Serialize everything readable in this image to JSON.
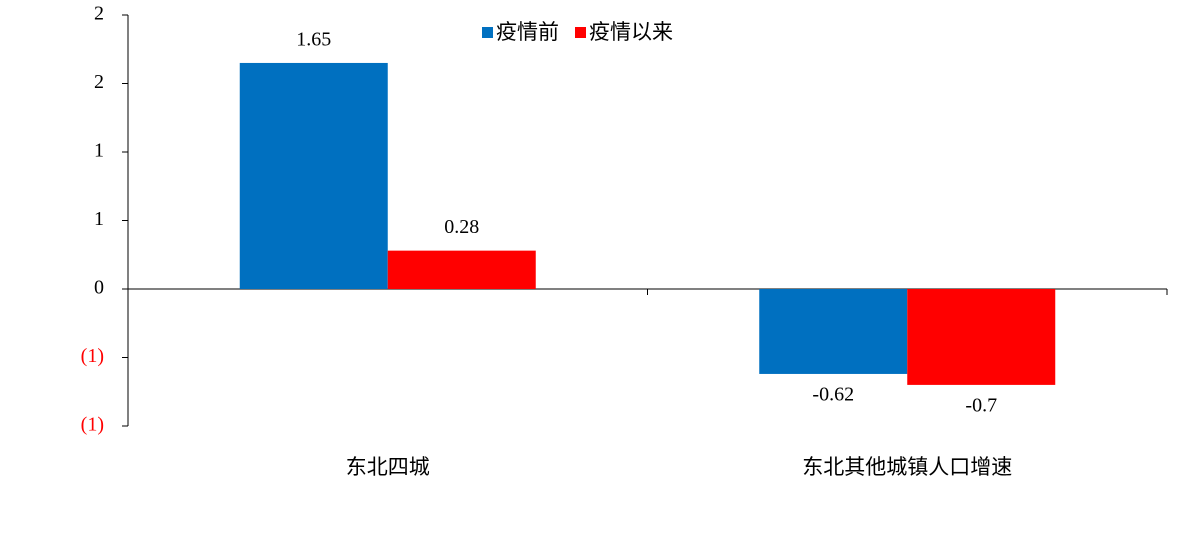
{
  "chart_data": {
    "type": "bar",
    "categories": [
      "东北四城",
      "东北其他城镇人口增速"
    ],
    "series": [
      {
        "name": "疫情前",
        "color": "#0070c0",
        "values": [
          1.65,
          -0.62
        ]
      },
      {
        "name": "疫情以来",
        "color": "#ff0000",
        "values": [
          0.28,
          -0.7
        ]
      }
    ],
    "ylim": [
      -1,
      2
    ],
    "yticks": [
      2,
      {
        "value": 1.5,
        "label": "2"
      },
      1,
      {
        "value": 0.5,
        "label": "1"
      },
      0,
      {
        "value": -0.5,
        "label": "(1)"
      },
      {
        "value": -1,
        "label": "(1)"
      }
    ],
    "negative_tick_color": "#ff0000",
    "legend": "top"
  }
}
